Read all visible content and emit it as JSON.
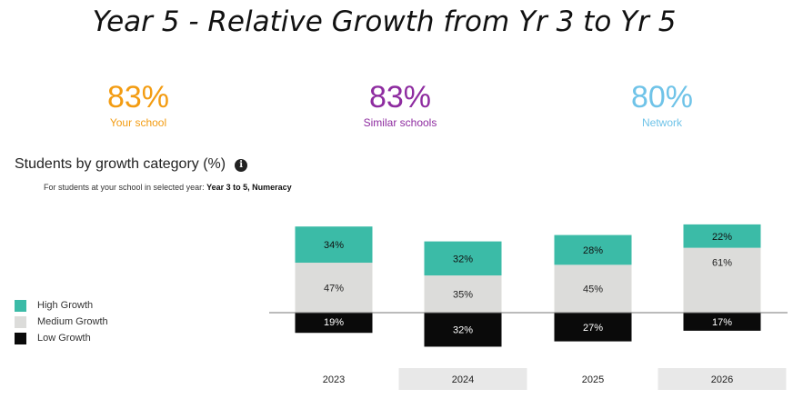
{
  "title": "Year 5 - Relative Growth from Yr 3 to Yr 5",
  "summary": [
    {
      "value": "83%",
      "label": "Your school",
      "color": "#f39c12"
    },
    {
      "value": "83%",
      "label": "Similar schools",
      "color": "#8e2ca0"
    },
    {
      "value": "80%",
      "label": "Network",
      "color": "#6fc3e8"
    }
  ],
  "section_heading": "Students by growth category (%)",
  "info_icon": "i",
  "subheading_prefix": "For students at your school in selected year:",
  "subheading_bold": "Year 3 to 5, Numeracy",
  "colors": {
    "high": "#3bbba7",
    "medium": "#dcdcda",
    "low": "#0a0a0a",
    "year_band": "#e8e8e8"
  },
  "chart_data": {
    "type": "bar",
    "stacked": "diverging",
    "categories": [
      "2023",
      "2024",
      "2025",
      "2026"
    ],
    "highlighted_categories": [
      "2024",
      "2026"
    ],
    "series": [
      {
        "name": "High Growth",
        "key": "high",
        "values": [
          34,
          32,
          28,
          22
        ]
      },
      {
        "name": "Medium Growth",
        "key": "medium",
        "values": [
          47,
          35,
          45,
          61
        ]
      },
      {
        "name": "Low Growth",
        "key": "low",
        "values": [
          19,
          32,
          27,
          17
        ]
      }
    ],
    "value_labels": {
      "high": [
        "34%",
        "32%",
        "28%",
        "22%"
      ],
      "medium": [
        "47%",
        "35%",
        "45%",
        "61%"
      ],
      "low": [
        "19%",
        "32%",
        "27%",
        "17%"
      ]
    },
    "legend_position": "left",
    "baseline": "High Growth and Medium Growth stack above the baseline; Low Growth extends below"
  }
}
